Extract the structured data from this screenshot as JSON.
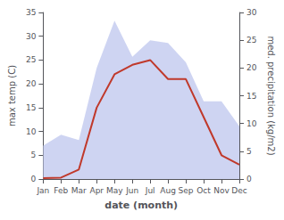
{
  "chart_data": {
    "type": "line",
    "xlabel": "date (month)",
    "ylabel": "max temp (C)",
    "y2label": "med. precipitation (kg/m2)",
    "categories": [
      "Jan",
      "Feb",
      "Mar",
      "Apr",
      "May",
      "Jun",
      "Jul",
      "Aug",
      "Sep",
      "Oct",
      "Nov",
      "Dec"
    ],
    "series": [
      {
        "type": "area",
        "axis": "y2",
        "color": "#c5cdf0",
        "values": [
          6.0,
          8.0,
          7.0,
          20.0,
          28.5,
          22.0,
          25.0,
          24.5,
          21.0,
          14.0,
          14.0,
          9.5
        ]
      },
      {
        "type": "line",
        "color": "#c0392b",
        "values": [
          0.2,
          0.3,
          2.0,
          15.0,
          22.0,
          24.0,
          25.0,
          21.0,
          21.0,
          13.0,
          5.0,
          3.0
        ]
      }
    ],
    "ylim": [
      0,
      35
    ],
    "yticks": [
      0,
      5,
      10,
      15,
      20,
      25,
      30,
      35
    ],
    "y2lim": [
      0,
      30
    ],
    "y2ticks": [
      0,
      5,
      10,
      15,
      20,
      25,
      30
    ],
    "grid": false
  }
}
